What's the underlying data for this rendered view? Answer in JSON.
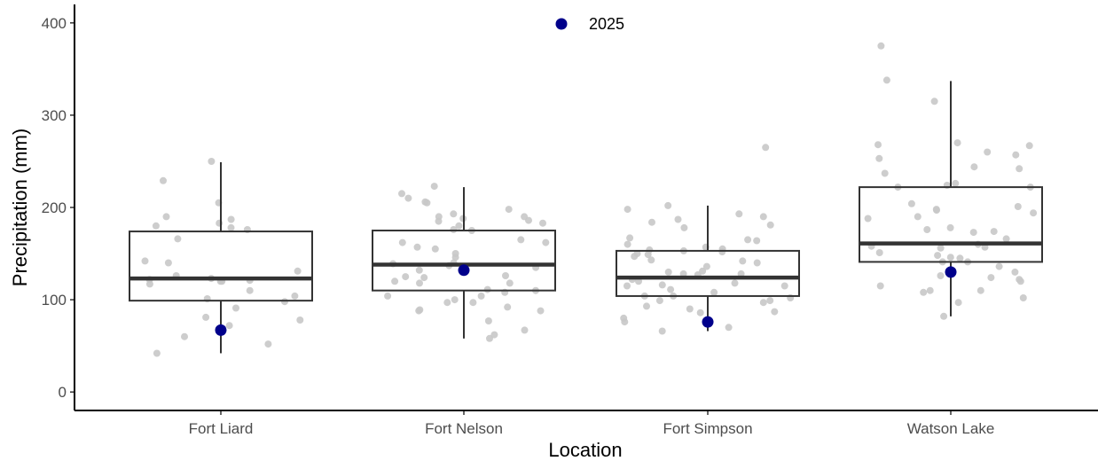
{
  "chart_data": {
    "type": "boxplot",
    "xlabel": "Location",
    "ylabel": "Precipitation (mm)",
    "ylim": [
      -20,
      420
    ],
    "yticks": [
      0,
      100,
      200,
      300,
      400
    ],
    "categories": [
      "Fort Liard",
      "Fort Nelson",
      "Fort Simpson",
      "Watson Lake"
    ],
    "legend": {
      "label": "2025",
      "placement": "top-center"
    },
    "colors": {
      "points": "#c8c8c8",
      "highlight": "#00008b",
      "box": "#333333",
      "axis": "#000000"
    },
    "boxes": [
      {
        "category": "Fort Liard",
        "min": 42,
        "q1": 99,
        "median": 123,
        "q3": 174,
        "max": 249
      },
      {
        "category": "Fort Nelson",
        "min": 58,
        "q1": 110,
        "median": 138,
        "q3": 175,
        "max": 222
      },
      {
        "category": "Fort Simpson",
        "min": 66,
        "q1": 104,
        "median": 124,
        "q3": 153,
        "max": 202
      },
      {
        "category": "Watson Lake",
        "min": 82,
        "q1": 141,
        "median": 161,
        "q3": 222,
        "max": 337
      }
    ],
    "highlight_2025": [
      {
        "category": "Fort Liard",
        "value": 67
      },
      {
        "category": "Fort Nelson",
        "value": 132
      },
      {
        "category": "Fort Simpson",
        "value": 76
      },
      {
        "category": "Watson Lake",
        "value": 130
      }
    ],
    "points": [
      {
        "category": "Fort Liard",
        "values": [
          183,
          187,
          180,
          166,
          123,
          120,
          117,
          98,
          91,
          81,
          60,
          52,
          176,
          122,
          120,
          126,
          110,
          229,
          178,
          205,
          190,
          142,
          104,
          78,
          42,
          250,
          131,
          140,
          101,
          72,
          121
        ]
      },
      {
        "category": "Fort Nelson",
        "values": [
          205,
          210,
          162,
          100,
          88,
          175,
          155,
          125,
          118,
          190,
          185,
          139,
          110,
          89,
          186,
          180,
          132,
          104,
          97,
          92,
          58,
          162,
          157,
          146,
          120,
          104,
          137,
          62,
          77,
          88,
          223,
          193,
          188,
          176,
          165,
          150,
          140,
          124,
          118,
          108,
          215,
          206,
          198,
          190,
          183,
          135,
          67,
          126,
          111,
          97
        ]
      },
      {
        "category": "Fort Simpson",
        "values": [
          198,
          187,
          153,
          99,
          90,
          193,
          165,
          130,
          115,
          76,
          178,
          152,
          127,
          120,
          102,
          86,
          181,
          155,
          131,
          104,
          140,
          87,
          202,
          160,
          154,
          142,
          128,
          118,
          99,
          66,
          190,
          184,
          167,
          150,
          115,
          108,
          97,
          265,
          149,
          136,
          122,
          111,
          157,
          147,
          128,
          116,
          104,
          164,
          93,
          143,
          80,
          70
        ]
      },
      {
        "category": "Watson Lake",
        "values": [
          375,
          315,
          237,
          224,
          198,
          188,
          174,
          141,
          124,
          108,
          102,
          260,
          244,
          204,
          176,
          151,
          130,
          115,
          268,
          222,
          190,
          158,
          141,
          126,
          110,
          270,
          242,
          226,
          148,
          338,
          201,
          160,
          146,
          122,
          110,
          82,
          267,
          257,
          197,
          178,
          157,
          136,
          120,
          97,
          194,
          173,
          166,
          156,
          253,
          222,
          145
        ]
      }
    ]
  }
}
